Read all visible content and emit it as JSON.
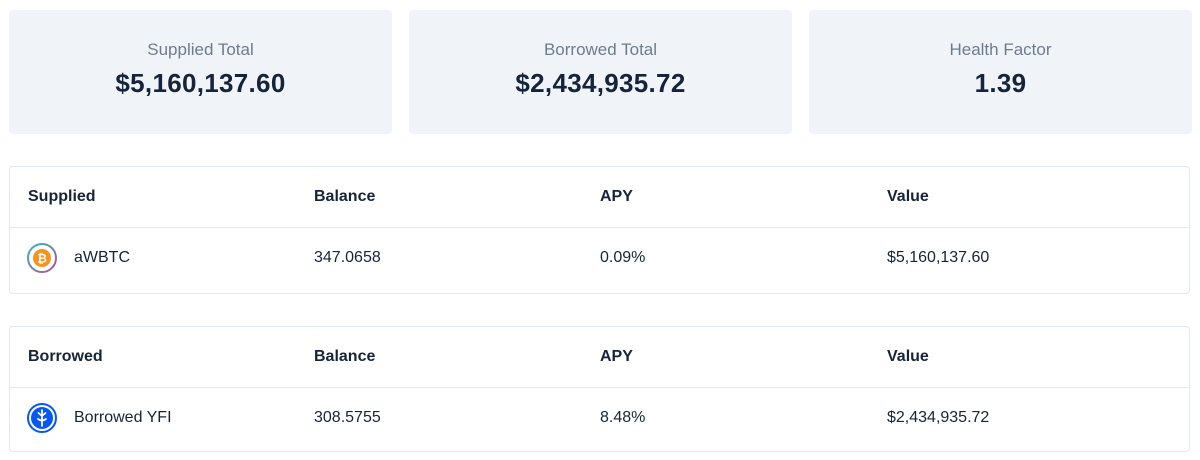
{
  "summary": {
    "supplied_total": {
      "label": "Supplied Total",
      "value": "$5,160,137.60"
    },
    "borrowed_total": {
      "label": "Borrowed Total",
      "value": "$2,434,935.72"
    },
    "health_factor": {
      "label": "Health Factor",
      "value": "1.39"
    }
  },
  "supplied_table": {
    "headers": [
      "Supplied",
      "Balance",
      "APY",
      "Value"
    ],
    "rows": [
      {
        "icon": "awbtc-token-icon",
        "name": "aWBTC",
        "balance": "347.0658",
        "apy": "0.09%",
        "value": "$5,160,137.60"
      }
    ]
  },
  "borrowed_table": {
    "headers": [
      "Borrowed",
      "Balance",
      "APY",
      "Value"
    ],
    "rows": [
      {
        "icon": "yfi-token-icon",
        "name": "Borrowed YFI",
        "balance": "308.5755",
        "apy": "8.48%",
        "value": "$2,434,935.72"
      }
    ]
  },
  "colors": {
    "card_bg": "#f0f4f8",
    "text_dark": "#15243a",
    "text_muted": "#6c7c8f",
    "border": "#e4e9ef",
    "btc_orange": "#f7931a",
    "yfi_blue": "#0657f9"
  }
}
